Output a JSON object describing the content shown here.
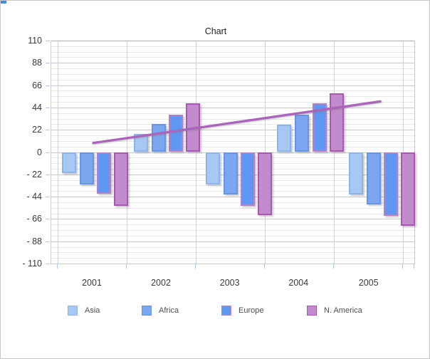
{
  "chart_data": {
    "type": "bar",
    "title": "Chart",
    "categories": [
      "2001",
      "2002",
      "2003",
      "2004",
      "2005"
    ],
    "series": [
      {
        "name": "Asia",
        "values": [
          -21,
          18,
          -32,
          27,
          -42
        ],
        "fill": "#A8C8F4",
        "border": "#8FB3EC"
      },
      {
        "name": "Africa",
        "values": [
          -32,
          28,
          -42,
          37,
          -52
        ],
        "fill": "#7CA6F0",
        "border": "#6794E6"
      },
      {
        "name": "Europe",
        "values": [
          -41,
          37,
          -53,
          48,
          -63
        ],
        "fill": "#5F97F3",
        "border": "#B77FC6"
      },
      {
        "name": "N. America",
        "values": [
          -53,
          48,
          -62,
          58,
          -73
        ],
        "fill": "#C28BCB",
        "border": "#AA57B4"
      }
    ],
    "trendline": {
      "start_value": 9,
      "end_value": 50,
      "color": "#AC63BC"
    },
    "y_axis": {
      "min": -110,
      "max": 110,
      "major_step": 22,
      "minor_step": 5.5,
      "tick_labels": [
        "110",
        "88",
        "66",
        "44",
        "22",
        "0",
        "- 22",
        "- 44",
        "- 66",
        "- 88",
        "- 110"
      ]
    },
    "x_axis": {
      "tick_labels": [
        "2001",
        "2002",
        "2003",
        "2004",
        "2005"
      ]
    },
    "legend": {
      "position": "bottom",
      "entries": [
        "Asia",
        "Africa",
        "Europe",
        "N. America"
      ]
    },
    "grid": true,
    "ylim": [
      -110,
      110
    ]
  }
}
